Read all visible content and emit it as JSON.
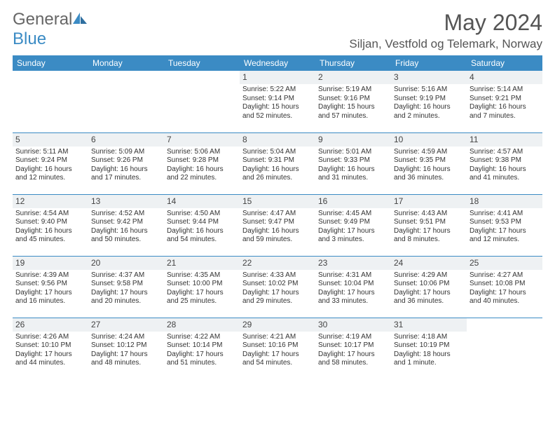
{
  "brand": {
    "name_part1": "General",
    "name_part2": "Blue"
  },
  "title": "May 2024",
  "location": "Siljan, Vestfold og Telemark, Norway",
  "colors": {
    "header_bg": "#3b8bc4",
    "header_text": "#ffffff",
    "daynum_bg": "#eef1f3",
    "border": "#3b8bc4",
    "brand_gray": "#666666",
    "brand_blue": "#3b8bc4"
  },
  "weekdays": [
    "Sunday",
    "Monday",
    "Tuesday",
    "Wednesday",
    "Thursday",
    "Friday",
    "Saturday"
  ],
  "weeks": [
    [
      null,
      null,
      null,
      {
        "n": "1",
        "sr": "5:22 AM",
        "ss": "9:14 PM",
        "dl": "15 hours and 52 minutes."
      },
      {
        "n": "2",
        "sr": "5:19 AM",
        "ss": "9:16 PM",
        "dl": "15 hours and 57 minutes."
      },
      {
        "n": "3",
        "sr": "5:16 AM",
        "ss": "9:19 PM",
        "dl": "16 hours and 2 minutes."
      },
      {
        "n": "4",
        "sr": "5:14 AM",
        "ss": "9:21 PM",
        "dl": "16 hours and 7 minutes."
      }
    ],
    [
      {
        "n": "5",
        "sr": "5:11 AM",
        "ss": "9:24 PM",
        "dl": "16 hours and 12 minutes."
      },
      {
        "n": "6",
        "sr": "5:09 AM",
        "ss": "9:26 PM",
        "dl": "16 hours and 17 minutes."
      },
      {
        "n": "7",
        "sr": "5:06 AM",
        "ss": "9:28 PM",
        "dl": "16 hours and 22 minutes."
      },
      {
        "n": "8",
        "sr": "5:04 AM",
        "ss": "9:31 PM",
        "dl": "16 hours and 26 minutes."
      },
      {
        "n": "9",
        "sr": "5:01 AM",
        "ss": "9:33 PM",
        "dl": "16 hours and 31 minutes."
      },
      {
        "n": "10",
        "sr": "4:59 AM",
        "ss": "9:35 PM",
        "dl": "16 hours and 36 minutes."
      },
      {
        "n": "11",
        "sr": "4:57 AM",
        "ss": "9:38 PM",
        "dl": "16 hours and 41 minutes."
      }
    ],
    [
      {
        "n": "12",
        "sr": "4:54 AM",
        "ss": "9:40 PM",
        "dl": "16 hours and 45 minutes."
      },
      {
        "n": "13",
        "sr": "4:52 AM",
        "ss": "9:42 PM",
        "dl": "16 hours and 50 minutes."
      },
      {
        "n": "14",
        "sr": "4:50 AM",
        "ss": "9:44 PM",
        "dl": "16 hours and 54 minutes."
      },
      {
        "n": "15",
        "sr": "4:47 AM",
        "ss": "9:47 PM",
        "dl": "16 hours and 59 minutes."
      },
      {
        "n": "16",
        "sr": "4:45 AM",
        "ss": "9:49 PM",
        "dl": "17 hours and 3 minutes."
      },
      {
        "n": "17",
        "sr": "4:43 AM",
        "ss": "9:51 PM",
        "dl": "17 hours and 8 minutes."
      },
      {
        "n": "18",
        "sr": "4:41 AM",
        "ss": "9:53 PM",
        "dl": "17 hours and 12 minutes."
      }
    ],
    [
      {
        "n": "19",
        "sr": "4:39 AM",
        "ss": "9:56 PM",
        "dl": "17 hours and 16 minutes."
      },
      {
        "n": "20",
        "sr": "4:37 AM",
        "ss": "9:58 PM",
        "dl": "17 hours and 20 minutes."
      },
      {
        "n": "21",
        "sr": "4:35 AM",
        "ss": "10:00 PM",
        "dl": "17 hours and 25 minutes."
      },
      {
        "n": "22",
        "sr": "4:33 AM",
        "ss": "10:02 PM",
        "dl": "17 hours and 29 minutes."
      },
      {
        "n": "23",
        "sr": "4:31 AM",
        "ss": "10:04 PM",
        "dl": "17 hours and 33 minutes."
      },
      {
        "n": "24",
        "sr": "4:29 AM",
        "ss": "10:06 PM",
        "dl": "17 hours and 36 minutes."
      },
      {
        "n": "25",
        "sr": "4:27 AM",
        "ss": "10:08 PM",
        "dl": "17 hours and 40 minutes."
      }
    ],
    [
      {
        "n": "26",
        "sr": "4:26 AM",
        "ss": "10:10 PM",
        "dl": "17 hours and 44 minutes."
      },
      {
        "n": "27",
        "sr": "4:24 AM",
        "ss": "10:12 PM",
        "dl": "17 hours and 48 minutes."
      },
      {
        "n": "28",
        "sr": "4:22 AM",
        "ss": "10:14 PM",
        "dl": "17 hours and 51 minutes."
      },
      {
        "n": "29",
        "sr": "4:21 AM",
        "ss": "10:16 PM",
        "dl": "17 hours and 54 minutes."
      },
      {
        "n": "30",
        "sr": "4:19 AM",
        "ss": "10:17 PM",
        "dl": "17 hours and 58 minutes."
      },
      {
        "n": "31",
        "sr": "4:18 AM",
        "ss": "10:19 PM",
        "dl": "18 hours and 1 minute."
      },
      null
    ]
  ]
}
